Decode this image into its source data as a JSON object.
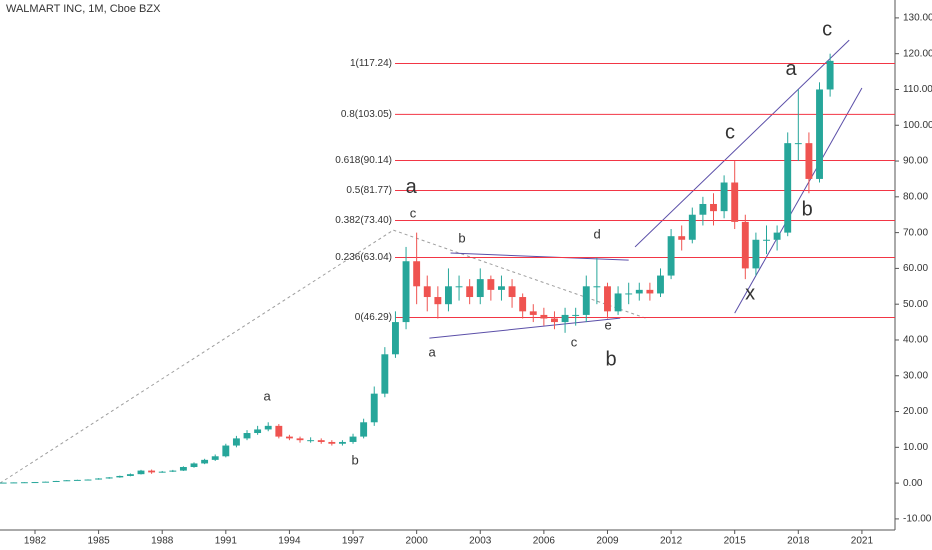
{
  "chart_data": {
    "type": "candlestick",
    "title": "WALMART INC, 1M, Cboe BZX",
    "x": [
      1980.0,
      1980.5,
      1981.0,
      1981.5,
      1982.0,
      1982.5,
      1983.0,
      1983.5,
      1984.0,
      1984.5,
      1985.0,
      1985.5,
      1986.0,
      1986.5,
      1987.0,
      1987.5,
      1988.0,
      1988.5,
      1989.0,
      1989.5,
      1990.0,
      1990.5,
      1991.0,
      1991.5,
      1992.0,
      1992.5,
      1993.0,
      1993.5,
      1994.0,
      1994.5,
      1995.0,
      1995.5,
      1996.0,
      1996.5,
      1997.0,
      1997.5,
      1998.0,
      1998.5,
      1999.0,
      1999.5,
      2000.0,
      2000.5,
      2001.0,
      2001.5,
      2002.0,
      2002.5,
      2003.0,
      2003.5,
      2004.0,
      2004.5,
      2005.0,
      2005.5,
      2006.0,
      2006.5,
      2007.0,
      2007.5,
      2008.0,
      2008.5,
      2009.0,
      2009.5,
      2010.0,
      2010.5,
      2011.0,
      2011.5,
      2012.0,
      2012.5,
      2013.0,
      2013.5,
      2014.0,
      2014.5,
      2015.0,
      2015.5,
      2016.0,
      2016.5,
      2017.0,
      2017.5,
      2018.0,
      2018.5,
      2019.0,
      2019.5
    ],
    "open": [
      0.1,
      0.12,
      0.15,
      0.2,
      0.25,
      0.3,
      0.4,
      0.6,
      0.8,
      0.9,
      1.0,
      1.3,
      1.6,
      2.0,
      2.5,
      3.5,
      3.0,
      3.2,
      3.5,
      4.5,
      5.5,
      6.5,
      7.5,
      10.5,
      12.5,
      14,
      15,
      16,
      13,
      12.5,
      12,
      12,
      11.5,
      11,
      11.5,
      13,
      17,
      25,
      36,
      45,
      62,
      55,
      52,
      50,
      55,
      55,
      52,
      57,
      54,
      55,
      52,
      48,
      47,
      46,
      45,
      47,
      47,
      55,
      55,
      48,
      53,
      53,
      54,
      53,
      58,
      69,
      68,
      75,
      78,
      76,
      84,
      73,
      60,
      68,
      68,
      70,
      95,
      95,
      85,
      110
    ],
    "high": [
      0.13,
      0.16,
      0.21,
      0.27,
      0.32,
      0.42,
      0.63,
      0.85,
      0.95,
      1.05,
      1.4,
      1.7,
      2.1,
      2.7,
      3.7,
      3.8,
      3.4,
      3.7,
      4.7,
      5.8,
      6.8,
      8.0,
      11,
      13.2,
      14.8,
      16,
      17,
      16.5,
      13.5,
      13,
      12.8,
      12.5,
      12,
      12,
      13.8,
      18,
      27,
      38,
      48,
      66,
      70,
      58,
      55,
      60,
      58,
      57,
      60,
      58,
      58,
      57,
      53,
      50,
      49,
      48,
      49,
      49,
      58,
      63,
      56,
      55,
      56,
      56,
      56,
      60,
      71,
      72,
      77,
      80,
      81,
      86,
      90,
      75,
      70,
      72,
      72,
      98,
      110,
      98,
      112,
      120
    ],
    "low": [
      0.09,
      0.11,
      0.14,
      0.19,
      0.24,
      0.28,
      0.38,
      0.58,
      0.78,
      0.88,
      0.95,
      1.2,
      1.5,
      1.9,
      2.4,
      2.6,
      2.9,
      3.1,
      3.4,
      4.3,
      5.3,
      6.2,
      7.2,
      10,
      12,
      13.5,
      14.5,
      12.5,
      12,
      11.3,
      11.3,
      11,
      10.5,
      10.5,
      11,
      12.5,
      16,
      24,
      35,
      43,
      50,
      48,
      46,
      48,
      51,
      50,
      50,
      51,
      51,
      49,
      46,
      45,
      44,
      43,
      42,
      44,
      45,
      50,
      46,
      47,
      50,
      51,
      51,
      52,
      57,
      65,
      67,
      72,
      72,
      74,
      71,
      57,
      58,
      64,
      65,
      69,
      90,
      81,
      84,
      108
    ],
    "close": [
      0.12,
      0.15,
      0.2,
      0.25,
      0.3,
      0.4,
      0.6,
      0.8,
      0.9,
      1.0,
      1.3,
      1.6,
      2.0,
      2.5,
      3.5,
      3.0,
      3.2,
      3.5,
      4.5,
      5.5,
      6.5,
      7.5,
      10.5,
      12.5,
      14,
      15,
      16,
      13,
      12.5,
      12,
      12,
      11.5,
      11,
      11.5,
      13,
      17,
      25,
      36,
      45,
      62,
      55,
      52,
      50,
      55,
      55,
      52,
      57,
      54,
      55,
      52,
      48,
      47,
      46,
      45,
      47,
      47,
      55,
      55,
      48,
      53,
      53,
      54,
      53,
      58,
      69,
      68,
      75,
      78,
      76,
      84,
      73,
      60,
      68,
      68,
      70,
      95,
      95,
      85,
      110,
      118
    ],
    "up_color": "#26a69a",
    "down_color": "#ef5350",
    "xlim": [
      1980.35,
      2022.56
    ],
    "ylim": [
      -13.1,
      135.0
    ],
    "xticks": [
      1982,
      1985,
      1988,
      1991,
      1994,
      1997,
      2000,
      2003,
      2006,
      2009,
      2012,
      2015,
      2018,
      2021
    ],
    "yticks": [
      {
        "value": -10,
        "label": "-10.00"
      },
      {
        "value": 0,
        "label": "0.00"
      },
      {
        "value": 10,
        "label": "10.00"
      },
      {
        "value": 20,
        "label": "20.00"
      },
      {
        "value": 30,
        "label": "30.00"
      },
      {
        "value": 40,
        "label": "40.00"
      },
      {
        "value": 50,
        "label": "50.00"
      },
      {
        "value": 60,
        "label": "60.00"
      },
      {
        "value": 70,
        "label": "70.00"
      },
      {
        "value": 80,
        "label": "80.00"
      },
      {
        "value": 90,
        "label": "90.00"
      },
      {
        "value": 100,
        "label": "100.00"
      },
      {
        "value": 110,
        "label": "110.00"
      },
      {
        "value": 120,
        "label": "120.00"
      },
      {
        "value": 130,
        "label": "130.00"
      }
    ],
    "fib_color": "#f23645",
    "fib_x_start": 1998.98,
    "fib_levels": [
      {
        "label": "1(117.24)",
        "value": 117.24
      },
      {
        "label": "0.8(103.05)",
        "value": 103.05
      },
      {
        "label": "0.618(90.14)",
        "value": 90.14
      },
      {
        "label": "0.5(81.77)",
        "value": 81.77
      },
      {
        "label": "0.382(73.40)",
        "value": 73.4
      },
      {
        "label": "0.236(63.04)",
        "value": 63.04
      },
      {
        "label": "0(46.29)",
        "value": 46.29
      }
    ],
    "trend_lines": [
      {
        "x": [
          1980.35,
          1998.9
        ],
        "y": [
          0,
          70.7
        ],
        "color": "#9e9e9e",
        "dashed": true
      },
      {
        "x": [
          1998.9,
          2010.8
        ],
        "y": [
          70.7,
          46.1
        ],
        "color": "#9e9e9e",
        "dashed": true
      },
      {
        "x": [
          2000.6,
          2009.6
        ],
        "y": [
          40.5,
          46.1
        ],
        "color": "#5b4fa8",
        "dashed": false
      },
      {
        "x": [
          2001.6,
          2010.0
        ],
        "y": [
          64.3,
          62.3
        ],
        "color": "#5b4fa8",
        "dashed": false
      },
      {
        "x": [
          2010.3,
          2020.4
        ],
        "y": [
          66.0,
          123.8
        ],
        "color": "#5b4fa8",
        "dashed": false
      },
      {
        "x": [
          2015.0,
          2021.0
        ],
        "y": [
          47.5,
          110.4
        ],
        "color": "#5b4fa8",
        "dashed": false
      }
    ],
    "annotations": [
      {
        "text": "a",
        "x": 1992.95,
        "y": 24.0,
        "color": "#c62828",
        "size": "small"
      },
      {
        "text": "b",
        "x": 1997.1,
        "y": 6.2,
        "color": "#c62828",
        "size": "small"
      },
      {
        "text": "a",
        "x": 1999.74,
        "y": 82.5,
        "color": "#111111",
        "size": "large"
      },
      {
        "text": "c",
        "x": 1999.83,
        "y": 75.2,
        "color": "#c62828",
        "size": "small"
      },
      {
        "text": "b",
        "x": 2002.14,
        "y": 68.2,
        "color": "#c62828",
        "size": "small"
      },
      {
        "text": "a",
        "x": 2000.73,
        "y": 36.3,
        "color": "#c62828",
        "size": "small"
      },
      {
        "text": "c",
        "x": 2007.42,
        "y": 39.1,
        "color": "#c62828",
        "size": "small"
      },
      {
        "text": "d",
        "x": 2008.51,
        "y": 69.3,
        "color": "#c62828",
        "size": "small"
      },
      {
        "text": "e",
        "x": 2009.03,
        "y": 43.9,
        "color": "#c62828",
        "size": "small"
      },
      {
        "text": "b",
        "x": 2009.17,
        "y": 34.4,
        "color": "#111111",
        "size": "large"
      },
      {
        "text": "c",
        "x": 2014.78,
        "y": 97.8,
        "color": "#111111",
        "size": "large"
      },
      {
        "text": "x",
        "x": 2015.73,
        "y": 52.8,
        "color": "#111111",
        "size": "large"
      },
      {
        "text": "a",
        "x": 2017.66,
        "y": 115.5,
        "color": "#111111",
        "size": "large"
      },
      {
        "text": "b",
        "x": 2018.42,
        "y": 76.3,
        "color": "#111111",
        "size": "large"
      },
      {
        "text": "c",
        "x": 2019.36,
        "y": 126.6,
        "color": "#111111",
        "size": "large"
      }
    ]
  }
}
